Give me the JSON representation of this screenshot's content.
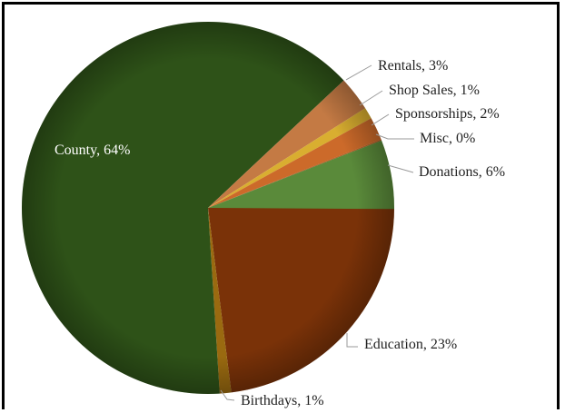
{
  "chart_data": {
    "type": "pie",
    "title": "",
    "start_angle_deg": 0,
    "direction": "clockwise",
    "slices": [
      {
        "label": "Education",
        "value": 23,
        "display": "Education, 23%",
        "color": "#7a3208"
      },
      {
        "label": "Birthdays",
        "value": 1,
        "display": "Birthdays, 1%",
        "color": "#9a6a10"
      },
      {
        "label": "County",
        "value": 64,
        "display": "County, 64%",
        "color": "#2e5218"
      },
      {
        "label": "Rentals",
        "value": 3,
        "display": "Rentals, 3%",
        "color": "#c47a44"
      },
      {
        "label": "Shop Sales",
        "value": 1,
        "display": "Shop Sales, 1%",
        "color": "#d9ae30"
      },
      {
        "label": "Sponsorships",
        "value": 2,
        "display": "Sponsorships, 2%",
        "color": "#cc6a2a"
      },
      {
        "label": "Misc",
        "value": 0,
        "display": "Misc, 0%",
        "color": "#b05a20"
      },
      {
        "label": "Donations",
        "value": 6,
        "display": "Donations, 6%",
        "color": "#5a8a3a"
      }
    ]
  }
}
